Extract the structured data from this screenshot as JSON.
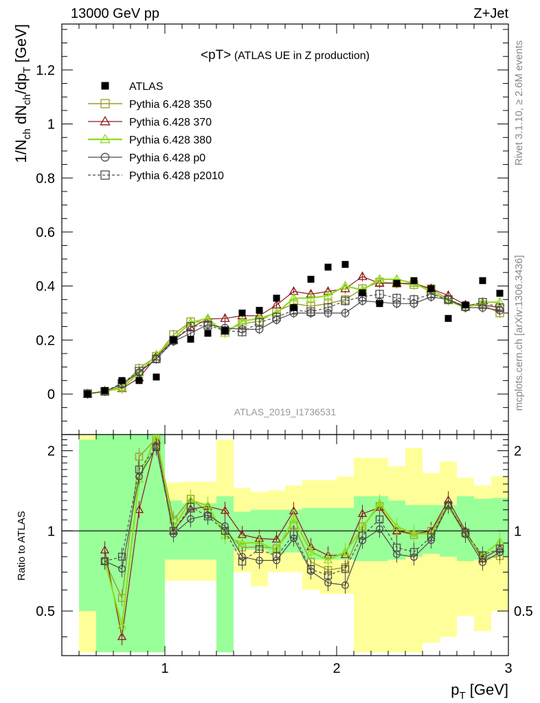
{
  "header": {
    "left": "13000 GeV pp",
    "right": "Z+Jet"
  },
  "side_labels": {
    "rivet": "Rivet 3.1.10, ≥ 2.6M events",
    "mcplots": "mcplots.cern.ch [arXiv:1306.3436]"
  },
  "chart_data": {
    "type": "line",
    "title": "<pT>",
    "subtitle": "(ATLAS UE in Z production)",
    "analysis_id": "ATLAS_2019_I1736531",
    "xlabel": {
      "main": "p",
      "sub": "T",
      "unit": " [GeV]"
    },
    "ylabel": {
      "parts": [
        {
          "t": "1/N",
          "s": false
        },
        {
          "t": "ch",
          "s": true
        },
        {
          "t": " dN",
          "s": false
        },
        {
          "t": "ch",
          "s": true
        },
        {
          "t": "/dp",
          "s": false
        },
        {
          "t": "T",
          "s": true
        },
        {
          "t": " [GeV]",
          "s": false
        }
      ]
    },
    "ratio_ylabel": "Ratio to ATLAS",
    "xlim": [
      0.4,
      3.0
    ],
    "ylim": [
      -0.15,
      1.37
    ],
    "ratio_ylim": [
      0.34,
      2.3
    ],
    "x_ticks": [
      1,
      2,
      3
    ],
    "x_tick_labels": [
      "1",
      "2",
      "3"
    ],
    "y_ticks": [
      0,
      0.2,
      0.4,
      0.6,
      0.8,
      1,
      1.2
    ],
    "y_tick_labels": [
      "0",
      "0.2",
      "0.4",
      "0.6",
      "0.8",
      "1",
      "1.2"
    ],
    "ratio_ticks": [
      0.5,
      1,
      2
    ],
    "ratio_tick_labels": [
      "0.5",
      "1",
      "2"
    ],
    "legend_position": "top-left",
    "x": [
      0.55,
      0.65,
      0.75,
      0.85,
      0.95,
      1.05,
      1.15,
      1.25,
      1.35,
      1.45,
      1.55,
      1.65,
      1.75,
      1.85,
      1.95,
      2.05,
      2.15,
      2.25,
      2.35,
      2.45,
      2.55,
      2.65,
      2.75,
      2.85,
      2.95
    ],
    "data": {
      "name": "ATLAS",
      "values": [
        0.0,
        0.013,
        0.05,
        0.05,
        0.063,
        0.2,
        0.203,
        0.225,
        0.235,
        0.3,
        0.31,
        0.355,
        0.32,
        0.425,
        0.47,
        0.48,
        0.375,
        0.335,
        0.41,
        0.42,
        0.39,
        0.28,
        0.33,
        0.42,
        0.373
      ],
      "ratio_band_inner": [
        [
          0.5,
          2.2
        ],
        [
          0.35,
          2.3
        ],
        [
          0.35,
          2.3
        ],
        [
          0.35,
          2.3
        ],
        [
          0.35,
          2.3
        ],
        [
          0.78,
          1.3
        ],
        [
          0.78,
          1.27
        ],
        [
          0.78,
          1.27
        ],
        [
          0.35,
          1.35
        ],
        [
          0.85,
          1.18
        ],
        [
          0.85,
          1.2
        ],
        [
          0.82,
          1.2
        ],
        [
          0.83,
          1.2
        ],
        [
          0.78,
          1.22
        ],
        [
          0.78,
          1.22
        ],
        [
          0.78,
          1.22
        ],
        [
          0.77,
          1.35
        ],
        [
          0.77,
          1.35
        ],
        [
          0.78,
          1.3
        ],
        [
          0.8,
          1.25
        ],
        [
          0.82,
          1.25
        ],
        [
          0.8,
          1.25
        ],
        [
          0.77,
          1.35
        ],
        [
          0.78,
          1.32
        ],
        [
          0.8,
          1.33
        ]
      ],
      "ratio_band_outer": [
        [
          0.35,
          2.3
        ],
        [
          0.35,
          2.3
        ],
        [
          0.35,
          2.3
        ],
        [
          0.35,
          2.3
        ],
        [
          0.35,
          2.3
        ],
        [
          0.65,
          1.52
        ],
        [
          0.65,
          1.53
        ],
        [
          0.65,
          1.53
        ],
        [
          0.35,
          2.2
        ],
        [
          0.7,
          1.45
        ],
        [
          0.62,
          1.4
        ],
        [
          0.7,
          1.42
        ],
        [
          0.7,
          1.48
        ],
        [
          0.6,
          1.55
        ],
        [
          0.58,
          1.55
        ],
        [
          0.58,
          1.6
        ],
        [
          0.35,
          1.88
        ],
        [
          0.35,
          1.88
        ],
        [
          0.35,
          1.75
        ],
        [
          0.35,
          2.05
        ],
        [
          0.38,
          1.65
        ],
        [
          0.4,
          1.82
        ],
        [
          0.48,
          1.58
        ],
        [
          0.42,
          1.48
        ],
        [
          0.5,
          1.6
        ]
      ]
    },
    "series": [
      {
        "name": "Pythia 6.428 350",
        "color": "#9a9a2a",
        "marker": "square-open",
        "dash": "none",
        "width": 1.4,
        "values": [
          0.002,
          0.01,
          0.028,
          0.095,
          0.14,
          0.22,
          0.268,
          0.265,
          0.235,
          0.26,
          0.27,
          0.305,
          0.335,
          0.325,
          0.335,
          0.35,
          0.39,
          0.415,
          0.41,
          0.405,
          0.39,
          0.35,
          0.325,
          0.33,
          0.3
        ]
      },
      {
        "name": "Pythia 6.428 370",
        "color": "#8b1a1a",
        "marker": "triangle-open",
        "dash": "none",
        "width": 1.2,
        "values": [
          0.0,
          0.011,
          0.02,
          0.06,
          0.138,
          0.2,
          0.245,
          0.278,
          0.28,
          0.29,
          0.29,
          0.33,
          0.38,
          0.37,
          0.38,
          0.39,
          0.435,
          0.41,
          0.41,
          0.41,
          0.39,
          0.365,
          0.33,
          0.33,
          0.32
        ]
      },
      {
        "name": "Pythia 6.428 380",
        "color": "#8fdc1e",
        "marker": "triangle-open",
        "dash": "none",
        "width": 2.2,
        "values": [
          0.001,
          0.01,
          0.022,
          0.078,
          0.145,
          0.205,
          0.265,
          0.28,
          0.225,
          0.27,
          0.28,
          0.3,
          0.355,
          0.355,
          0.365,
          0.4,
          0.385,
          0.425,
          0.425,
          0.41,
          0.38,
          0.345,
          0.32,
          0.34,
          0.34
        ]
      },
      {
        "name": "Pythia 6.428 p0",
        "color": "#4a4a4a",
        "marker": "circle-open",
        "dash": "none",
        "width": 1.2,
        "values": [
          0.001,
          0.01,
          0.036,
          0.08,
          0.13,
          0.195,
          0.225,
          0.258,
          0.245,
          0.24,
          0.24,
          0.275,
          0.3,
          0.3,
          0.3,
          0.3,
          0.345,
          0.34,
          0.335,
          0.335,
          0.36,
          0.35,
          0.32,
          0.32,
          0.31
        ]
      },
      {
        "name": "Pythia 6.428 p2010",
        "color": "#4a4a4a",
        "marker": "square-open",
        "dash": "4,3",
        "width": 1.2,
        "values": [
          0.001,
          0.01,
          0.04,
          0.085,
          0.13,
          0.2,
          0.25,
          0.255,
          0.235,
          0.23,
          0.265,
          0.285,
          0.31,
          0.305,
          0.32,
          0.345,
          0.36,
          0.37,
          0.355,
          0.35,
          0.37,
          0.35,
          0.325,
          0.34,
          0.32
        ]
      }
    ]
  }
}
